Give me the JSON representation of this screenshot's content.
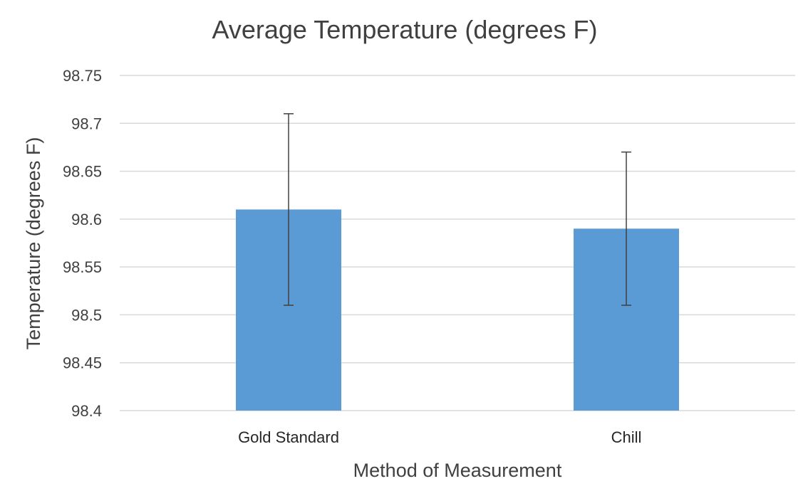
{
  "chart_data": {
    "type": "bar",
    "title": "Average Temperature (degrees F)",
    "xlabel": "Method of Measurement",
    "ylabel": "Temperature (degrees F)",
    "categories": [
      "Gold Standard",
      "Chill"
    ],
    "values": [
      98.61,
      98.59
    ],
    "error_upper": [
      98.71,
      98.67
    ],
    "error_lower": [
      98.51,
      98.51
    ],
    "ylim": [
      98.4,
      98.75
    ],
    "yticks": [
      "98.4",
      "98.45",
      "98.5",
      "98.55",
      "98.6",
      "98.65",
      "98.7",
      "98.75"
    ],
    "grid": true,
    "bar_color": "#5b9bd5"
  }
}
